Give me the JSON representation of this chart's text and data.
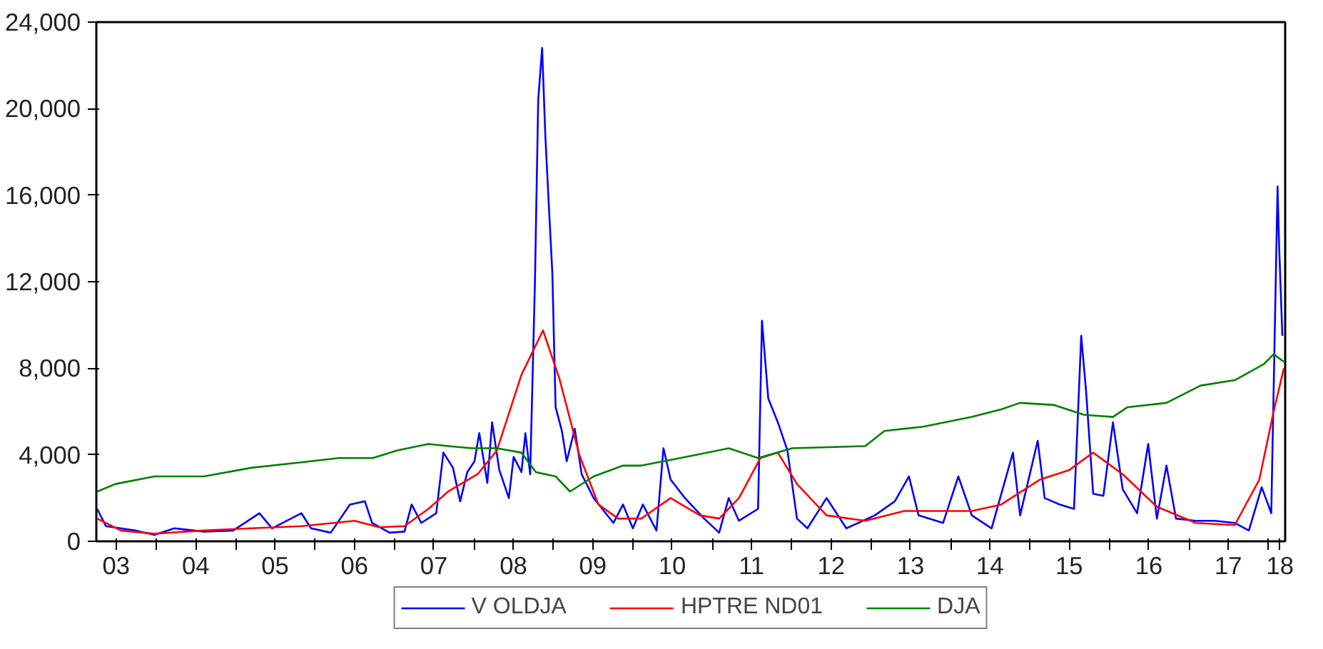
{
  "chart_data": {
    "type": "line",
    "xlim": [
      "2003-04-01",
      "2018-03-20"
    ],
    "xticks": [
      {
        "value": "2003-07-01",
        "label": "03"
      },
      {
        "value": "2004-01-01",
        "label": null
      },
      {
        "value": "2004-07-01",
        "label": "04"
      },
      {
        "value": "2005-01-01",
        "label": null
      },
      {
        "value": "2005-07-01",
        "label": "05"
      },
      {
        "value": "2006-01-01",
        "label": null
      },
      {
        "value": "2006-07-01",
        "label": "06"
      },
      {
        "value": "2007-01-01",
        "label": null
      },
      {
        "value": "2007-07-01",
        "label": "07"
      },
      {
        "value": "2008-01-01",
        "label": null
      },
      {
        "value": "2008-07-01",
        "label": "08"
      },
      {
        "value": "2009-01-01",
        "label": null
      },
      {
        "value": "2009-07-01",
        "label": "09"
      },
      {
        "value": "2010-01-01",
        "label": null
      },
      {
        "value": "2010-07-01",
        "label": "10"
      },
      {
        "value": "2011-01-01",
        "label": null
      },
      {
        "value": "2011-07-01",
        "label": "11"
      },
      {
        "value": "2012-01-01",
        "label": null
      },
      {
        "value": "2012-07-01",
        "label": "12"
      },
      {
        "value": "2013-01-01",
        "label": null
      },
      {
        "value": "2013-07-01",
        "label": "13"
      },
      {
        "value": "2014-01-01",
        "label": null
      },
      {
        "value": "2014-07-01",
        "label": "14"
      },
      {
        "value": "2015-01-01",
        "label": null
      },
      {
        "value": "2015-07-01",
        "label": "15"
      },
      {
        "value": "2016-01-01",
        "label": null
      },
      {
        "value": "2016-07-01",
        "label": "16"
      },
      {
        "value": "2017-01-01",
        "label": null
      },
      {
        "value": "2017-07-01",
        "label": "17"
      },
      {
        "value": "2018-01-01",
        "label": null
      },
      {
        "value": "2018-02-24",
        "label": "18"
      }
    ],
    "ylim": [
      0,
      24000
    ],
    "yticks": [
      {
        "value": 0,
        "label": "0"
      },
      {
        "value": 4000,
        "label": "4,000"
      },
      {
        "value": 8000,
        "label": "8,000"
      },
      {
        "value": 12000,
        "label": "12,000"
      },
      {
        "value": 16000,
        "label": "16,000"
      },
      {
        "value": 20000,
        "label": "20,000"
      },
      {
        "value": 24000,
        "label": "24,000"
      }
    ],
    "legend": "bottom",
    "line_style": "solid",
    "series": [
      {
        "name": "V OLDJA",
        "color": "#0000ff",
        "x": [
          "2003-04-05",
          "2003-05-15",
          "2003-09-27",
          "2003-12-24",
          "2004-03-25",
          "2004-08-07",
          "2004-12-20",
          "2005-04-20",
          "2005-06-17",
          "2005-10-30",
          "2005-12-13",
          "2006-03-14",
          "2006-06-10",
          "2006-08-18",
          "2006-09-20",
          "2006-12-09",
          "2007-02-16",
          "2007-03-21",
          "2007-05-04",
          "2007-07-12",
          "2007-08-14",
          "2007-09-27",
          "2007-10-30",
          "2007-12-02",
          "2008-01-04",
          "2008-01-26",
          "2008-03-03",
          "2008-03-25",
          "2008-04-27",
          "2008-06-10",
          "2008-07-02",
          "2008-08-07",
          "2008-08-25",
          "2008-09-16",
          "2008-10-08",
          "2008-10-23",
          "2008-11-10",
          "2008-11-25",
          "2008-12-13",
          "2008-12-27",
          "2009-01-11",
          "2009-02-09",
          "2009-03-03",
          "2009-04-09",
          "2009-05-11",
          "2009-07-05",
          "2009-10-04",
          "2009-11-17",
          "2010-01-01",
          "2010-02-16",
          "2010-04-20",
          "2010-05-22",
          "2010-06-24",
          "2010-08-29",
          "2010-11-25",
          "2011-02-02",
          "2011-03-18",
          "2011-05-04",
          "2011-07-31",
          "2011-08-18",
          "2011-09-16",
          "2011-10-30",
          "2011-12-13",
          "2012-01-26",
          "2012-03-14",
          "2012-06-10",
          "2012-09-09",
          "2013-01-18",
          "2013-04-20",
          "2013-06-24",
          "2013-08-07",
          "2013-11-28",
          "2014-02-06",
          "2014-04-09",
          "2014-07-09",
          "2014-10-15",
          "2014-11-17",
          "2015-02-06",
          "2015-03-10",
          "2015-05-19",
          "2015-07-23",
          "2015-08-25",
          "2015-09-16",
          "2015-10-19",
          "2015-12-05",
          "2016-01-18",
          "2016-03-03",
          "2016-05-08",
          "2016-06-28",
          "2016-08-07",
          "2016-09-20",
          "2016-11-03",
          "2017-02-02",
          "2017-04-30",
          "2017-07-31",
          "2017-10-04",
          "2017-12-02",
          "2018-01-15",
          "2018-02-13",
          "2018-02-20",
          "2018-03-07"
        ],
        "values": [
          1500,
          700,
          500,
          300,
          600,
          450,
          500,
          1300,
          600,
          1300,
          600,
          400,
          1700,
          1850,
          850,
          400,
          450,
          1700,
          850,
          1300,
          4100,
          3400,
          1850,
          3200,
          3700,
          5000,
          2700,
          5500,
          3300,
          2000,
          3900,
          3200,
          5000,
          3100,
          12000,
          20400,
          22800,
          18700,
          15100,
          12400,
          6200,
          5100,
          3700,
          5200,
          3100,
          2000,
          850,
          1700,
          600,
          1700,
          500,
          4300,
          2850,
          2000,
          1050,
          400,
          2000,
          950,
          1500,
          10200,
          6600,
          5500,
          4200,
          1050,
          600,
          2000,
          600,
          1200,
          1850,
          3000,
          1200,
          850,
          3000,
          1200,
          600,
          4100,
          1200,
          4650,
          2000,
          1700,
          1500,
          9500,
          7000,
          2200,
          2100,
          5500,
          2400,
          1300,
          4500,
          1050,
          3500,
          1050,
          950,
          950,
          850,
          500,
          2500,
          1300,
          16400,
          13700,
          9500
        ]
      },
      {
        "name": "HPTRE ND01",
        "color": "#ff0000",
        "x": [
          "2003-04-05",
          "2003-07-23",
          "2003-12-24",
          "2004-08-07",
          "2005-03-14",
          "2005-10-30",
          "2006-07-02",
          "2006-10-23",
          "2007-02-16",
          "2007-06-06",
          "2007-09-05",
          "2008-01-18",
          "2008-04-16",
          "2008-08-07",
          "2008-11-14",
          "2009-01-29",
          "2009-04-30",
          "2009-07-27",
          "2009-10-26",
          "2010-02-09",
          "2010-06-24",
          "2010-11-06",
          "2011-02-02",
          "2011-05-04",
          "2011-08-11",
          "2011-10-30",
          "2012-01-26",
          "2012-06-10",
          "2012-12-05",
          "2013-06-02",
          "2014-04-09",
          "2014-08-22",
          "2015-02-16",
          "2015-07-02",
          "2015-10-19",
          "2016-03-03",
          "2016-08-07",
          "2017-02-02",
          "2017-07-31",
          "2017-11-21",
          "2018-01-26",
          "2018-03-14"
        ],
        "values": [
          1050,
          500,
          350,
          500,
          600,
          700,
          950,
          650,
          700,
          1500,
          2300,
          3100,
          4200,
          7700,
          9750,
          7500,
          4000,
          1700,
          1050,
          1050,
          2000,
          1200,
          1050,
          2000,
          3850,
          4100,
          2650,
          1200,
          950,
          1400,
          1400,
          1700,
          2850,
          3300,
          4100,
          3100,
          1600,
          850,
          750,
          2850,
          6000,
          8000
        ]
      },
      {
        "name": "DJA",
        "color": "#008000",
        "x": [
          "2003-04-05",
          "2003-06-28",
          "2003-12-24",
          "2004-08-07",
          "2005-03-14",
          "2005-10-30",
          "2006-04-20",
          "2006-09-23",
          "2007-01-15",
          "2007-06-06",
          "2007-09-05",
          "2007-12-24",
          "2008-04-16",
          "2008-08-07",
          "2008-10-12",
          "2009-01-11",
          "2009-03-18",
          "2009-07-05",
          "2009-11-17",
          "2010-02-09",
          "2010-08-07",
          "2011-03-18",
          "2011-07-31",
          "2012-01-04",
          "2012-12-05",
          "2013-03-03",
          "2013-08-29",
          "2014-04-09",
          "2014-08-22",
          "2014-11-17",
          "2015-04-23",
          "2015-09-05",
          "2016-01-18",
          "2016-03-25",
          "2016-09-20",
          "2017-02-24",
          "2017-07-31",
          "2017-12-13",
          "2018-01-26",
          "2018-03-14"
        ],
        "values": [
          2300,
          2650,
          3000,
          3000,
          3400,
          3650,
          3850,
          3850,
          4200,
          4500,
          4400,
          4300,
          4300,
          4100,
          3200,
          3000,
          2300,
          3000,
          3500,
          3500,
          3850,
          4300,
          3850,
          4300,
          4400,
          5100,
          5300,
          5750,
          6100,
          6400,
          6300,
          5850,
          5750,
          6200,
          6400,
          7200,
          7450,
          8200,
          8650,
          8300
        ]
      }
    ]
  }
}
